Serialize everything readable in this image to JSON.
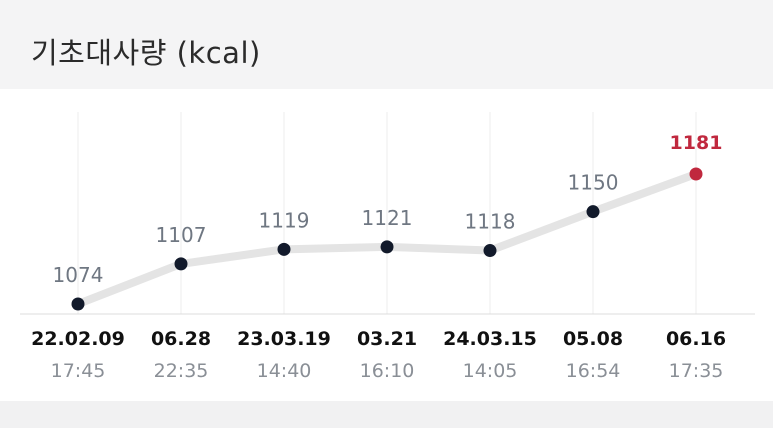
{
  "header": {
    "title": "기초대사량 (kcal)"
  },
  "colors": {
    "line": "#e4e4e4",
    "dot": "#121a2b",
    "highlight": "#c0283e",
    "grid": "#ececec"
  },
  "chart_data": {
    "type": "line",
    "title": "기초대사량 (kcal)",
    "xlabel": "",
    "ylabel": "",
    "grid": true,
    "ylim": [
      1060,
      1200
    ],
    "categories": [
      {
        "date": "22.02.09",
        "time": "17:45"
      },
      {
        "date": "06.28",
        "time": "22:35"
      },
      {
        "date": "23.03.19",
        "time": "14:40"
      },
      {
        "date": "03.21",
        "time": "16:10"
      },
      {
        "date": "24.03.15",
        "time": "14:05"
      },
      {
        "date": "05.08",
        "time": "16:54"
      },
      {
        "date": "06.16",
        "time": "17:35"
      }
    ],
    "values": [
      1074,
      1107,
      1119,
      1121,
      1118,
      1150,
      1181
    ],
    "value_labels": [
      "1074",
      "1107",
      "1119",
      "1121",
      "1118",
      "1150",
      "1181"
    ],
    "highlight_index": 6
  }
}
